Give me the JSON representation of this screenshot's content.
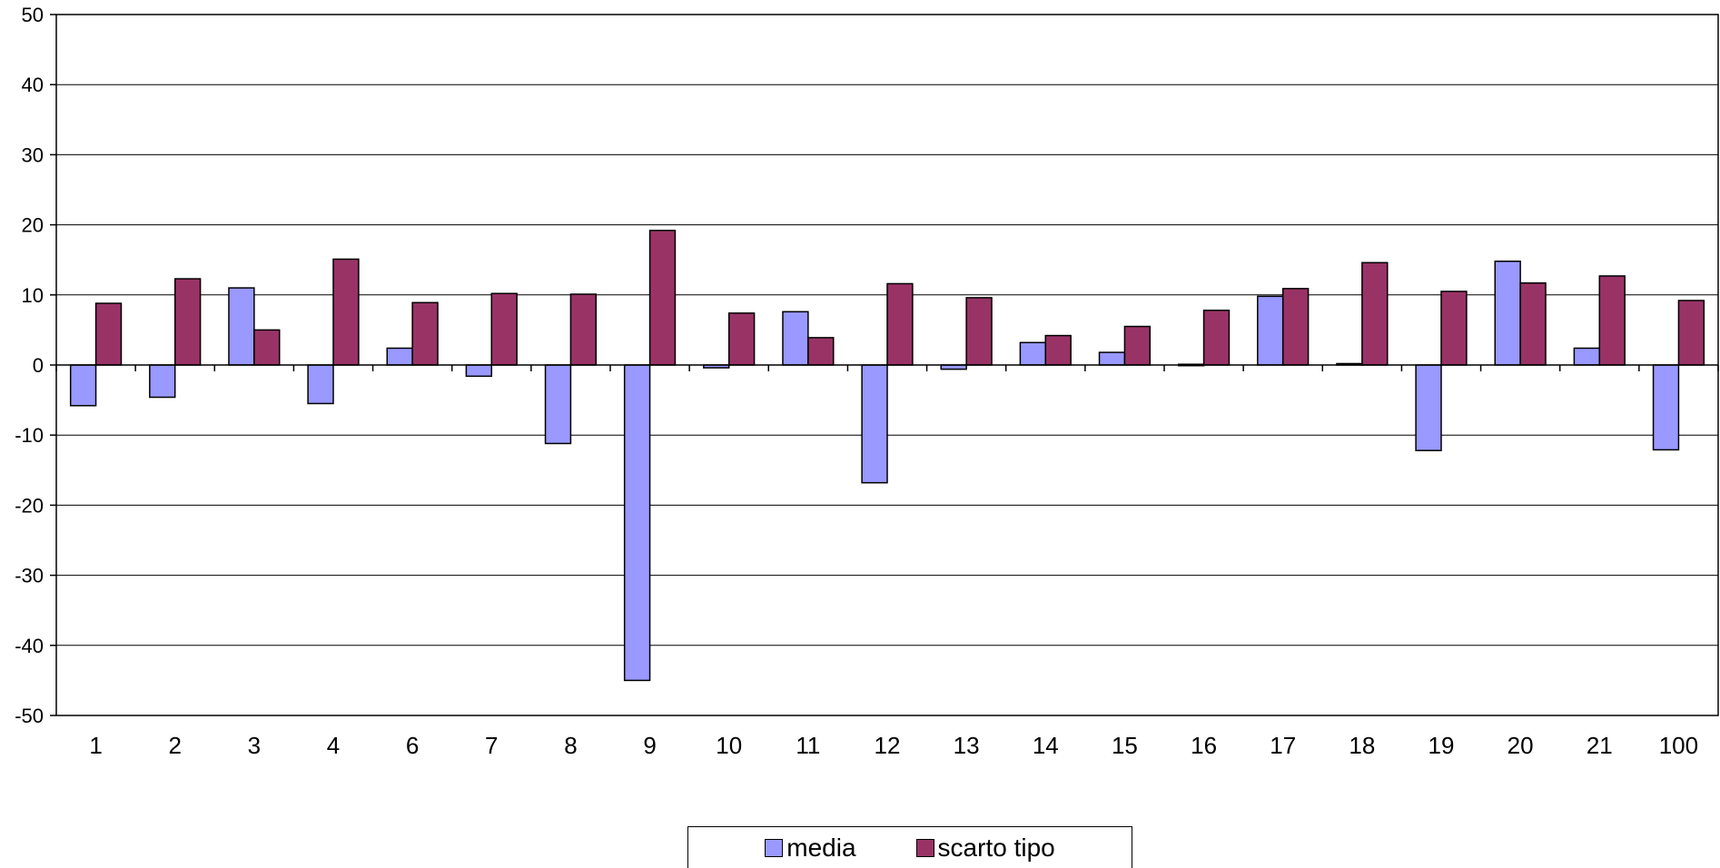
{
  "chart_data": {
    "type": "bar",
    "categories": [
      "1",
      "2",
      "3",
      "4",
      "6",
      "7",
      "8",
      "9",
      "10",
      "11",
      "12",
      "13",
      "14",
      "15",
      "16",
      "17",
      "18",
      "19",
      "20",
      "21",
      "100"
    ],
    "series": [
      {
        "name": "media",
        "color": "#9999ff",
        "values": [
          -5.8,
          -4.6,
          11.0,
          -5.5,
          2.4,
          -1.6,
          -11.2,
          -45.0,
          -0.4,
          7.6,
          -16.8,
          -0.6,
          3.2,
          1.8,
          0.1,
          9.8,
          0.2,
          -12.2,
          14.8,
          2.4,
          -12.1
        ]
      },
      {
        "name": "scarto tipo",
        "color": "#993366",
        "values": [
          8.8,
          12.3,
          5.0,
          15.1,
          8.9,
          10.2,
          10.1,
          19.2,
          7.4,
          3.9,
          11.6,
          9.6,
          4.2,
          5.5,
          7.8,
          10.9,
          14.6,
          10.5,
          11.7,
          12.7,
          9.2
        ]
      }
    ],
    "title": "",
    "xlabel": "",
    "ylabel": "",
    "ylim": [
      -50,
      50
    ],
    "yticks": [
      -50,
      -40,
      -30,
      -20,
      -10,
      0,
      10,
      20,
      30,
      40,
      50
    ],
    "grid": true,
    "legend": "bottom-center"
  }
}
